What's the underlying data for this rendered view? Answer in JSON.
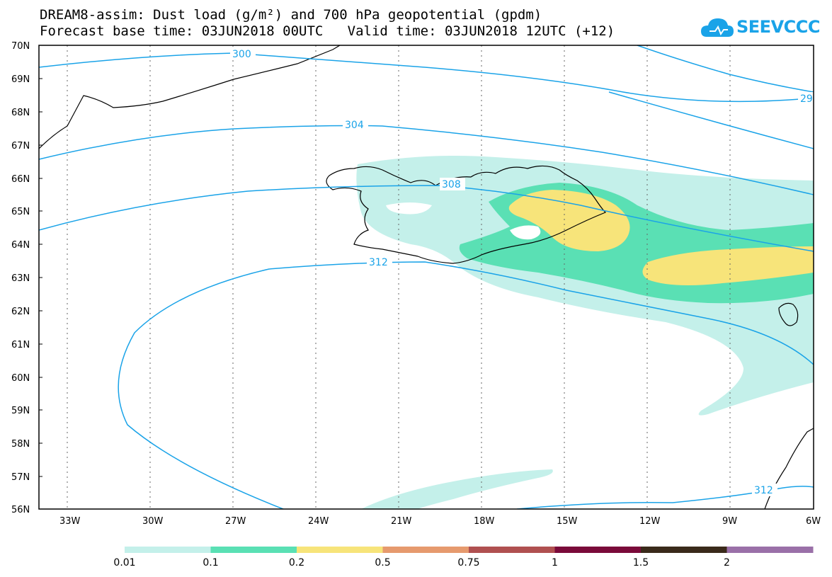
{
  "header": {
    "title_line1": "DREAM8-assim: Dust load (g/m²) and 700 hPa geopotential (gpdm)",
    "title_line2": "Forecast base time: 03JUN2018 00UTC   Valid time: 03JUN2018 12UTC (+12)",
    "logo_text": "SEEVCCC"
  },
  "map": {
    "lat_labels": [
      "70N",
      "69N",
      "68N",
      "67N",
      "66N",
      "65N",
      "64N",
      "63N",
      "62N",
      "61N",
      "60N",
      "59N",
      "58N",
      "57N",
      "56N"
    ],
    "lon_labels": [
      "33W",
      "30W",
      "27W",
      "24W",
      "21W",
      "18W",
      "15W",
      "12W",
      "9W",
      "6W"
    ],
    "contour_labels": {
      "c300": "300",
      "c304": "304",
      "c308": "308",
      "c312a": "312",
      "c312b": "312",
      "c29": "29"
    },
    "colors": {
      "contour": "#1aa3e8",
      "coast": "#000000",
      "grid": "#666666"
    }
  },
  "colorbar": {
    "labels": [
      "0.01",
      "0.1",
      "0.2",
      "0.5",
      "0.75",
      "1",
      "1.5",
      "2"
    ],
    "colors": [
      "#c4f0ea",
      "#5ae0b4",
      "#f7e47a",
      "#e69a6e",
      "#b05050",
      "#7a0a3a",
      "#3a2a1a",
      "#9a70a8"
    ]
  }
}
